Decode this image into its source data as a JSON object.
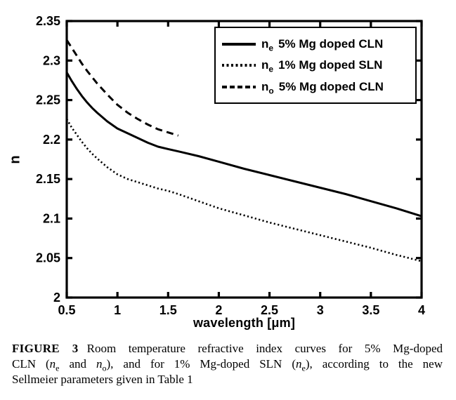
{
  "chart_data": {
    "type": "line",
    "title": "",
    "xlabel": "wavelength [μm]",
    "ylabel": "n",
    "xlim": [
      0.5,
      4
    ],
    "ylim": [
      2,
      2.35
    ],
    "grid": false,
    "frame_box": true,
    "x_ticks": [
      {
        "v": 0.5,
        "label": "0.5"
      },
      {
        "v": 1,
        "label": "1"
      },
      {
        "v": 1.5,
        "label": "1.5"
      },
      {
        "v": 2,
        "label": "2"
      },
      {
        "v": 2.5,
        "label": "2.5"
      },
      {
        "v": 3,
        "label": "3"
      },
      {
        "v": 3.5,
        "label": "3.5"
      },
      {
        "v": 4,
        "label": "4"
      }
    ],
    "y_ticks": [
      {
        "v": 2,
        "label": "2"
      },
      {
        "v": 2.05,
        "label": "2.05"
      },
      {
        "v": 2.1,
        "label": "2.1"
      },
      {
        "v": 2.15,
        "label": "2.15"
      },
      {
        "v": 2.2,
        "label": "2.2"
      },
      {
        "v": 2.25,
        "label": "2.25"
      },
      {
        "v": 2.3,
        "label": "2.3"
      },
      {
        "v": 2.35,
        "label": "2.35"
      }
    ],
    "line_color": "#000000",
    "background_color": "#ffffff",
    "legend": {
      "position": "top-right",
      "items": [
        {
          "sym": "n",
          "sub": "e",
          "rest": "5% Mg doped CLN",
          "line_style": "solid"
        },
        {
          "sym": "n",
          "sub": "e",
          "rest": "1% Mg doped SLN",
          "line_style": "dotted"
        },
        {
          "sym": "n",
          "sub": "o",
          "rest": "5% Mg doped CLN",
          "line_style": "dashed"
        }
      ]
    },
    "series": [
      {
        "name": "ne 5% Mg doped CLN",
        "line_style": "solid",
        "x": [
          0.5,
          0.55,
          0.6,
          0.65,
          0.7,
          0.75,
          0.8,
          0.9,
          1.0,
          1.1,
          1.2,
          1.3,
          1.4,
          1.5,
          1.6,
          1.8,
          2.0,
          2.25,
          2.5,
          2.75,
          3.0,
          3.25,
          3.5,
          3.75,
          4.0
        ],
        "y": [
          2.285,
          2.274,
          2.264,
          2.255,
          2.247,
          2.24,
          2.234,
          2.223,
          2.214,
          2.208,
          2.202,
          2.196,
          2.191,
          2.188,
          2.185,
          2.179,
          2.172,
          2.163,
          2.155,
          2.147,
          2.139,
          2.131,
          2.122,
          2.113,
          2.103
        ]
      },
      {
        "name": "ne 1% Mg doped SLN",
        "line_style": "dotted",
        "x": [
          0.5,
          0.55,
          0.6,
          0.65,
          0.7,
          0.75,
          0.8,
          0.9,
          1.0,
          1.1,
          1.2,
          1.3,
          1.4,
          1.5,
          1.6,
          1.8,
          2.0,
          2.25,
          2.5,
          2.75,
          3.0,
          3.25,
          3.5,
          3.75,
          4.0
        ],
        "y": [
          2.226,
          2.215,
          2.206,
          2.197,
          2.189,
          2.182,
          2.176,
          2.165,
          2.156,
          2.15,
          2.146,
          2.142,
          2.138,
          2.135,
          2.131,
          2.122,
          2.113,
          2.104,
          2.095,
          2.087,
          2.079,
          2.071,
          2.063,
          2.054,
          2.046
        ]
      },
      {
        "name": "no 5% Mg doped CLN",
        "line_style": "dashed",
        "x": [
          0.5,
          0.55,
          0.6,
          0.65,
          0.7,
          0.75,
          0.8,
          0.9,
          1.0,
          1.1,
          1.2,
          1.3,
          1.4,
          1.5,
          1.6
        ],
        "y": [
          2.326,
          2.316,
          2.306,
          2.296,
          2.287,
          2.279,
          2.271,
          2.257,
          2.244,
          2.234,
          2.226,
          2.219,
          2.213,
          2.209,
          2.205
        ]
      }
    ]
  },
  "caption": {
    "label": "FIGURE 3",
    "line1": "Room temperature refractive index curves for 5% Mg-doped",
    "l2a": "CLN (",
    "l2n1": "n",
    "l2s1": "e",
    "l2b": " and ",
    "l2n2": "n",
    "l2s2": "o",
    "l2c": "), and for 1% Mg-doped SLN (",
    "l2n3": "n",
    "l2s3": "e",
    "l2d": "), according to the new",
    "line3": "Sellmeier parameters given in Table 1"
  }
}
